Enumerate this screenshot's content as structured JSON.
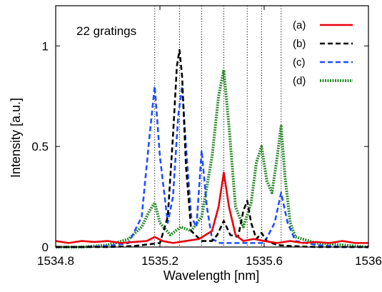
{
  "chart_data": {
    "type": "line",
    "xlabel": "Wavelength [nm]",
    "ylabel": "Intensity [a.u.]",
    "xlim": [
      1534.8,
      1536
    ],
    "ylim": [
      0,
      1.2
    ],
    "x_ticks": [
      1534.8,
      1535.2,
      1535.6,
      1536
    ],
    "x_tick_labels": [
      "1534.8",
      "1535.2",
      "1535.6",
      "1536"
    ],
    "y_ticks": [
      0,
      0.5,
      1
    ],
    "y_tick_labels": [
      "0",
      "0.5",
      "1"
    ],
    "annotation": "22 gratings",
    "legend_position": "top-right",
    "grid": false,
    "reference_lines_x": [
      1535.18,
      1535.275,
      1535.36,
      1535.445,
      1535.535,
      1535.59,
      1535.665
    ],
    "series": [
      {
        "name": "(a)",
        "color": "#e8000b",
        "dash": "solid",
        "x": [
          1534.8,
          1534.85,
          1534.9,
          1534.95,
          1535.0,
          1535.05,
          1535.1,
          1535.15,
          1535.18,
          1535.21,
          1535.25,
          1535.3,
          1535.35,
          1535.4,
          1535.425,
          1535.445,
          1535.465,
          1535.49,
          1535.52,
          1535.56,
          1535.6,
          1535.65,
          1535.7,
          1535.75,
          1535.8,
          1535.85,
          1535.9,
          1535.95,
          1536.0
        ],
        "y": [
          0.03,
          0.02,
          0.03,
          0.025,
          0.03,
          0.02,
          0.025,
          0.03,
          0.05,
          0.03,
          0.02,
          0.03,
          0.04,
          0.08,
          0.2,
          0.37,
          0.2,
          0.06,
          0.03,
          0.04,
          0.03,
          0.02,
          0.03,
          0.02,
          0.025,
          0.02,
          0.03,
          0.02,
          0.02
        ]
      },
      {
        "name": "(b)",
        "color": "#000000",
        "dash": "dashed",
        "x": [
          1534.8,
          1534.9,
          1535.0,
          1535.1,
          1535.2,
          1535.23,
          1535.25,
          1535.265,
          1535.275,
          1535.285,
          1535.3,
          1535.32,
          1535.36,
          1535.4,
          1535.42,
          1535.445,
          1535.47,
          1535.5,
          1535.52,
          1535.535,
          1535.55,
          1535.57,
          1535.59,
          1535.61,
          1535.65,
          1535.7,
          1535.8,
          1535.9,
          1536.0
        ],
        "y": [
          0.0,
          0.0,
          0.0,
          0.005,
          0.02,
          0.15,
          0.55,
          0.9,
          0.98,
          0.85,
          0.4,
          0.08,
          0.03,
          0.03,
          0.06,
          0.13,
          0.06,
          0.05,
          0.18,
          0.23,
          0.12,
          0.04,
          0.07,
          0.03,
          0.01,
          0.005,
          0.0,
          0.0,
          0.0
        ]
      },
      {
        "name": "(c)",
        "color": "#1f4fff",
        "dash": "dashed",
        "x": [
          1534.8,
          1534.9,
          1535.0,
          1535.08,
          1535.13,
          1535.16,
          1535.18,
          1535.2,
          1535.23,
          1535.25,
          1535.27,
          1535.285,
          1535.3,
          1535.32,
          1535.34,
          1535.36,
          1535.38,
          1535.4,
          1535.43,
          1535.5,
          1535.6,
          1535.64,
          1535.665,
          1535.69,
          1535.72,
          1535.8,
          1535.9,
          1536.0
        ],
        "y": [
          0.0,
          0.0,
          0.005,
          0.02,
          0.15,
          0.55,
          0.8,
          0.45,
          0.12,
          0.25,
          0.65,
          0.8,
          0.5,
          0.15,
          0.1,
          0.48,
          0.2,
          0.04,
          0.02,
          0.02,
          0.02,
          0.12,
          0.27,
          0.12,
          0.03,
          0.01,
          0.0,
          0.0
        ]
      },
      {
        "name": "(d)",
        "color": "#2e8b2e",
        "dash": "dotted",
        "x": [
          1534.8,
          1534.9,
          1535.0,
          1535.08,
          1535.13,
          1535.16,
          1535.18,
          1535.2,
          1535.24,
          1535.28,
          1535.32,
          1535.36,
          1535.4,
          1535.425,
          1535.445,
          1535.465,
          1535.49,
          1535.52,
          1535.55,
          1535.57,
          1535.59,
          1535.61,
          1535.63,
          1535.65,
          1535.665,
          1535.68,
          1535.7,
          1535.72,
          1535.8,
          1535.9,
          1536.0
        ],
        "y": [
          0.0,
          0.0,
          0.01,
          0.04,
          0.1,
          0.18,
          0.22,
          0.12,
          0.06,
          0.1,
          0.08,
          0.15,
          0.45,
          0.75,
          0.88,
          0.6,
          0.2,
          0.1,
          0.22,
          0.42,
          0.5,
          0.33,
          0.27,
          0.45,
          0.6,
          0.35,
          0.12,
          0.05,
          0.02,
          0.01,
          0.0
        ]
      }
    ]
  }
}
